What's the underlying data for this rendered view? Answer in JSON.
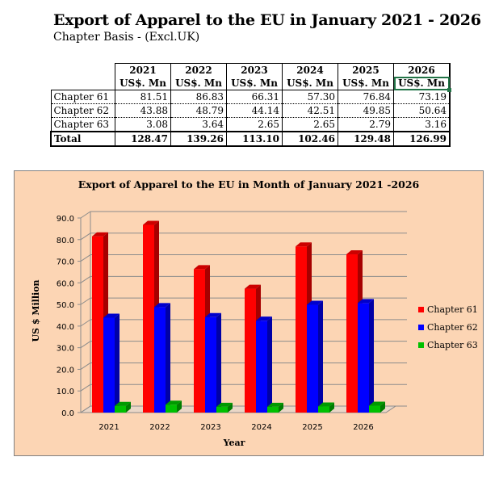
{
  "header": {
    "title": "Export of Apparel to the EU in January 2021 - 2026",
    "subtitle": "Chapter Basis - (Excl.UK)"
  },
  "table": {
    "years": [
      "2021",
      "2022",
      "2023",
      "2024",
      "2025",
      "2026"
    ],
    "unit_label": "US$. Mn",
    "rows": [
      {
        "label": "Chapter 61",
        "values": [
          "81.51",
          "86.83",
          "66.31",
          "57.30",
          "76.84",
          "73.19"
        ]
      },
      {
        "label": "Chapter 62",
        "values": [
          "43.88",
          "48.79",
          "44.14",
          "42.51",
          "49.85",
          "50.64"
        ]
      },
      {
        "label": "Chapter 63",
        "values": [
          "3.08",
          "3.64",
          "2.65",
          "2.65",
          "2.79",
          "3.16"
        ]
      }
    ],
    "total": {
      "label": "Total",
      "values": [
        "128.47",
        "139.26",
        "113.10",
        "102.46",
        "129.48",
        "126.99"
      ]
    }
  },
  "chart_data": {
    "type": "bar",
    "title": "Export of Apparel to the EU in Month of January 2021 -2026",
    "xlabel": "Year",
    "ylabel": "US $ Million",
    "categories": [
      "2021",
      "2022",
      "2023",
      "2024",
      "2025",
      "2026"
    ],
    "ylim": [
      0,
      90
    ],
    "yticks": [
      "0.0",
      "10.0",
      "20.0",
      "30.0",
      "40.0",
      "50.0",
      "60.0",
      "70.0",
      "80.0",
      "90.0"
    ],
    "grid": true,
    "legend": "right",
    "background": "#FCD5B4",
    "series": [
      {
        "name": "Chapter 61",
        "color": "#FF0000",
        "values": [
          81.51,
          86.83,
          66.31,
          57.3,
          76.84,
          73.19
        ]
      },
      {
        "name": "Chapter 62",
        "color": "#0000FF",
        "values": [
          43.88,
          48.79,
          44.14,
          42.51,
          49.85,
          50.64
        ]
      },
      {
        "name": "Chapter 63",
        "color": "#00C000",
        "values": [
          3.08,
          3.64,
          2.65,
          2.65,
          2.79,
          3.16
        ]
      }
    ]
  }
}
